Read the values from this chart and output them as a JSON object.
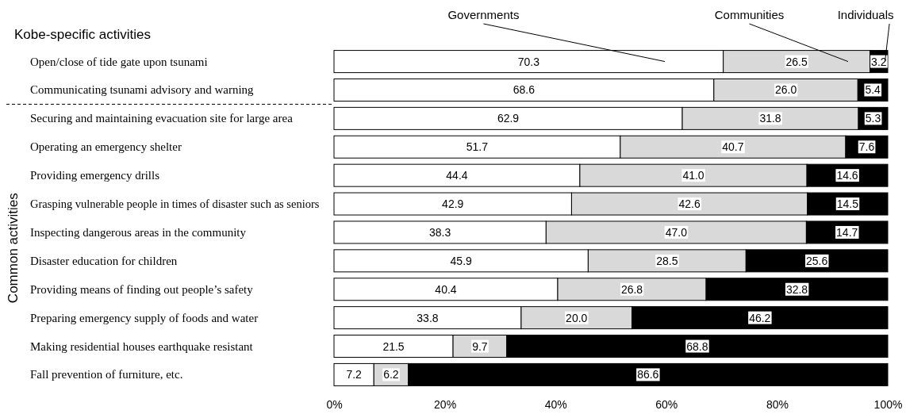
{
  "chart_data": {
    "type": "bar",
    "orientation": "horizontal",
    "stacked": true,
    "legend": "top",
    "ylabel": "Common activities",
    "annotations": [
      "Kobe-specific activities"
    ],
    "categories": [
      "Open/close of tide gate upon tsunami",
      "Communicating tsunami advisory and warning",
      "Securing and maintaining evacuation site for large area",
      "Operating an emergency shelter",
      "Providing emergency drills",
      "Grasping vulnerable people in times of disaster such as seniors",
      "Inspecting dangerous areas in the community",
      "Disaster education for children",
      "Providing means of finding out people’s safety",
      "Preparing emergency supply of foods and water",
      "Making residential houses earthquake resistant",
      "Fall prevention of furniture, etc."
    ],
    "series": [
      {
        "name": "Governments",
        "color": "#ffffff",
        "values": [
          70.3,
          68.6,
          62.9,
          51.7,
          44.4,
          42.9,
          38.3,
          45.9,
          40.4,
          33.8,
          21.5,
          7.2
        ],
        "value_labels": [
          "70.3",
          "68.6",
          "62.9",
          "51.7",
          "44.4",
          "42.9",
          "38.3",
          "45.9",
          "40.4",
          "33.8",
          "21.5",
          "7.2"
        ]
      },
      {
        "name": "Communities",
        "color": "#d9d9d9",
        "values": [
          26.5,
          26.0,
          31.8,
          40.7,
          41.0,
          42.6,
          47.0,
          28.5,
          26.8,
          20.0,
          9.7,
          6.2
        ],
        "value_labels": [
          "26.5",
          "26.0",
          "31.8",
          "40.7",
          "41.0",
          "42.6",
          "47.0",
          "28.5",
          "26.8",
          "20.0",
          "9.7",
          "6.2"
        ]
      },
      {
        "name": "Individuals",
        "color": "#000000",
        "values": [
          3.2,
          5.4,
          5.3,
          7.6,
          14.6,
          14.5,
          14.7,
          25.6,
          32.8,
          46.2,
          68.8,
          86.6
        ],
        "value_labels": [
          "3.2",
          "5.4",
          "5.3",
          "7.6",
          "14.6",
          "14.5",
          "14.7",
          "25.6",
          "32.8",
          "46.2",
          "68.8",
          "86.6"
        ]
      }
    ],
    "xlim": [
      0,
      100
    ],
    "xticks": [
      {
        "value": 0,
        "label": "0%"
      },
      {
        "value": 20,
        "label": "20%"
      },
      {
        "value": 40,
        "label": "40%"
      },
      {
        "value": 60,
        "label": "60%"
      },
      {
        "value": 80,
        "label": "80%"
      },
      {
        "value": 100,
        "label": "100%"
      }
    ]
  }
}
